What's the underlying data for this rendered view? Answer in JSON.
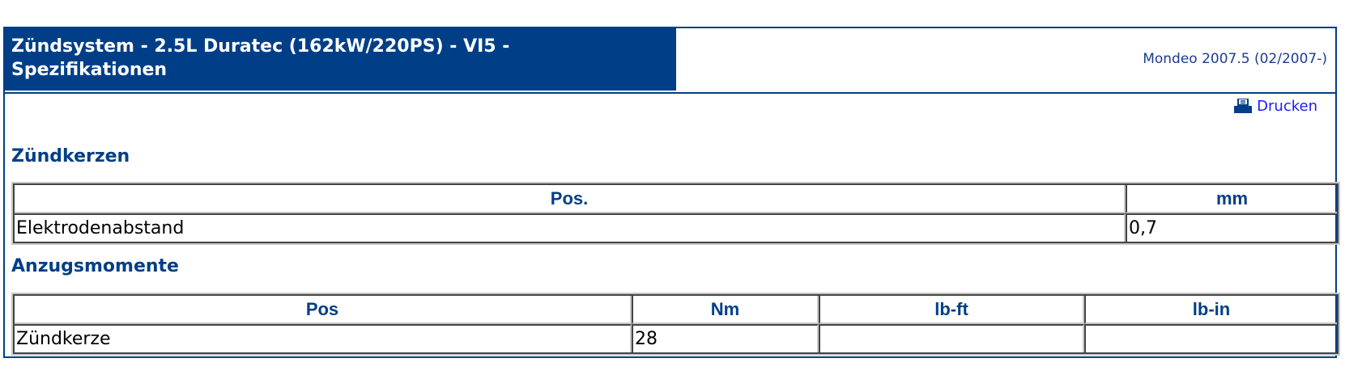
{
  "header": {
    "title": "Zündsystem - 2.5L Duratec (162kW/220PS) - VI5 - Spezifikationen",
    "model": "Mondeo 2007.5 (02/2007-)"
  },
  "print": {
    "label": "Drucken",
    "icon": "printer-icon"
  },
  "colors": {
    "accent": "#003f87",
    "link": "#1a1aff"
  },
  "sections": [
    {
      "heading": "Zündkerzen",
      "columns": [
        "Pos.",
        "mm"
      ],
      "rows": [
        [
          "Elektrodenabstand",
          "0,7"
        ]
      ]
    },
    {
      "heading": "Anzugsmomente",
      "columns": [
        "Pos",
        "Nm",
        "lb-ft",
        "lb-in"
      ],
      "rows": [
        [
          "Zündkerze",
          "28",
          "",
          ""
        ]
      ]
    }
  ]
}
